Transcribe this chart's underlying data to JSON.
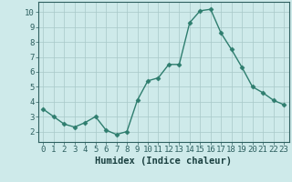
{
  "x": [
    0,
    1,
    2,
    3,
    4,
    5,
    6,
    7,
    8,
    9,
    10,
    11,
    12,
    13,
    14,
    15,
    16,
    17,
    18,
    19,
    20,
    21,
    22,
    23
  ],
  "y": [
    3.5,
    3.0,
    2.5,
    2.3,
    2.6,
    3.0,
    2.1,
    1.8,
    2.0,
    4.1,
    5.4,
    5.6,
    6.5,
    6.5,
    9.3,
    10.1,
    10.2,
    8.6,
    7.5,
    6.3,
    5.0,
    4.6,
    4.1,
    3.8
  ],
  "line_color": "#2e7d6e",
  "marker": "D",
  "marker_size": 2.5,
  "linewidth": 1.0,
  "xlabel": "Humidex (Indice chaleur)",
  "xlim": [
    -0.5,
    23.5
  ],
  "ylim": [
    1.3,
    10.7
  ],
  "yticks": [
    2,
    3,
    4,
    5,
    6,
    7,
    8,
    9,
    10
  ],
  "xticks": [
    0,
    1,
    2,
    3,
    4,
    5,
    6,
    7,
    8,
    9,
    10,
    11,
    12,
    13,
    14,
    15,
    16,
    17,
    18,
    19,
    20,
    21,
    22,
    23
  ],
  "background_color": "#ceeaea",
  "grid_color": "#a8c8c8",
  "tick_label_fontsize": 6.5,
  "xlabel_fontsize": 7.5,
  "tick_color": "#2e6060",
  "xlabel_color": "#1a4040",
  "spine_color": "#2e6060"
}
